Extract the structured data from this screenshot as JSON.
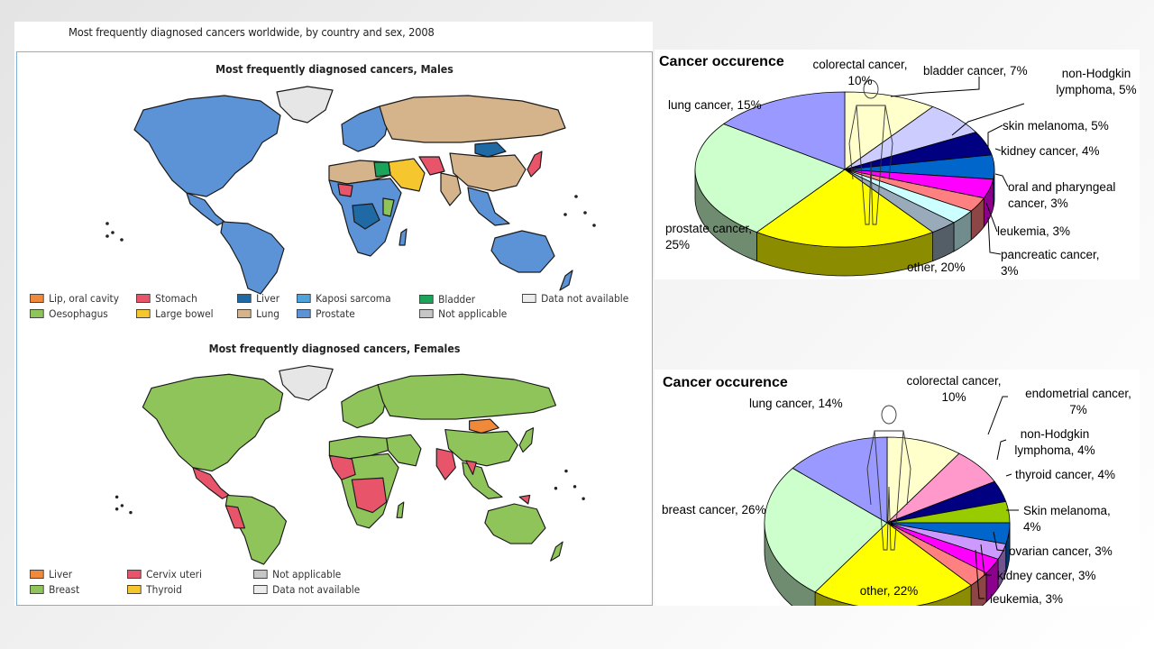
{
  "map_panel": {
    "figure_title": "Most frequently diagnosed cancers worldwide, by country and sex, 2008",
    "males": {
      "title": "Most frequently diagnosed cancers, Males",
      "legend": [
        {
          "label": "Lip, oral cavity",
          "color": "#f08a3a"
        },
        {
          "label": "Oesophagus",
          "color": "#8fc45a"
        },
        {
          "label": "Stomach",
          "color": "#e8556a"
        },
        {
          "label": "Large bowel",
          "color": "#f5c62e"
        },
        {
          "label": "Liver",
          "color": "#1f6aa5"
        },
        {
          "label": "Lung",
          "color": "#d5b48c"
        },
        {
          "label": "Kaposi sarcoma",
          "color": "#4ea3dc"
        },
        {
          "label": "Prostate",
          "color": "#5b93d6"
        },
        {
          "label": "Bladder",
          "color": "#1aa55a"
        },
        {
          "label": "Not applicable",
          "color": "#c6c6c6"
        },
        {
          "label": "Data not available",
          "color": "#ececec"
        }
      ]
    },
    "females": {
      "title": "Most frequently diagnosed cancers, Females",
      "legend": [
        {
          "label": "Liver",
          "color": "#f08a3a"
        },
        {
          "label": "Breast",
          "color": "#8fc45a"
        },
        {
          "label": "Cervix uteri",
          "color": "#e8556a"
        },
        {
          "label": "Thyroid",
          "color": "#f5c62e"
        },
        {
          "label": "Not applicable",
          "color": "#c6c6c6"
        },
        {
          "label": "Data not available",
          "color": "#ececec"
        }
      ]
    }
  },
  "chart_data": [
    {
      "type": "pie",
      "title": "Cancer occurence",
      "subject": "male",
      "slices": [
        {
          "label": "colorectal cancer, 10%",
          "name": "colorectal cancer",
          "value": 10,
          "color": "#ffffcc"
        },
        {
          "label": "bladder cancer, 7%",
          "name": "bladder cancer",
          "value": 7,
          "color": "#ccccff"
        },
        {
          "label": "non-Hodgkin lymphoma, 5%",
          "name": "non-Hodgkin lymphoma",
          "value": 5,
          "color": "#000080"
        },
        {
          "label": "skin melanoma, 5%",
          "name": "skin melanoma",
          "value": 5,
          "color": "#0066cc"
        },
        {
          "label": "kidney cancer, 4%",
          "name": "kidney cancer",
          "value": 4,
          "color": "#ff00ff"
        },
        {
          "label": "oral and pharyngeal cancer, 3%",
          "name": "oral and pharyngeal cancer",
          "value": 3,
          "color": "#ff8080"
        },
        {
          "label": "leukemia, 3%",
          "name": "leukemia",
          "value": 3,
          "color": "#ccffff"
        },
        {
          "label": "pancreatic cancer, 3%",
          "name": "pancreatic cancer",
          "value": 3,
          "color": "#99aabb"
        },
        {
          "label": "other, 20%",
          "name": "other",
          "value": 20,
          "color": "#ffff00"
        },
        {
          "label": "prostate cancer, 25%",
          "name": "prostate cancer",
          "value": 25,
          "color": "#ccffcc"
        },
        {
          "label": "lung cancer, 15%",
          "name": "lung cancer",
          "value": 15,
          "color": "#9999ff"
        }
      ]
    },
    {
      "type": "pie",
      "title": "Cancer occurence",
      "subject": "female",
      "slices": [
        {
          "label": "colorectal cancer, 10%",
          "name": "colorectal cancer",
          "value": 10,
          "color": "#ffffcc"
        },
        {
          "label": "endometrial cancer, 7%",
          "name": "endometrial cancer",
          "value": 7,
          "color": "#ff99cc"
        },
        {
          "label": "non-Hodgkin lymphoma, 4%",
          "name": "non-Hodgkin lymphoma",
          "value": 4,
          "color": "#000080"
        },
        {
          "label": "thyroid cancer, 4%",
          "name": "thyroid cancer",
          "value": 4,
          "color": "#99cc00"
        },
        {
          "label": "Skin melanoma, 4%",
          "name": "Skin melanoma",
          "value": 4,
          "color": "#0066cc"
        },
        {
          "label": "ovarian cancer, 3%",
          "name": "ovarian cancer",
          "value": 3,
          "color": "#cc99ff"
        },
        {
          "label": "kidney cancer, 3%",
          "name": "kidney cancer",
          "value": 3,
          "color": "#ff00ff"
        },
        {
          "label": "leukemia, 3%",
          "name": "leukemia",
          "value": 3,
          "color": "#ff8080"
        },
        {
          "label": "other, 22%",
          "name": "other",
          "value": 22,
          "color": "#ffff00"
        },
        {
          "label": "breast cancer, 26%",
          "name": "breast cancer",
          "value": 26,
          "color": "#ccffcc"
        },
        {
          "label": "lung cancer, 14%",
          "name": "lung cancer",
          "value": 14,
          "color": "#9999ff"
        }
      ]
    }
  ],
  "pie_labels": {
    "male": [
      [
        "colorectal cancer,",
        "10%"
      ],
      [
        "bladder cancer, 7%"
      ],
      [
        "non-Hodgkin",
        "lymphoma, 5%"
      ],
      [
        "skin melanoma, 5%"
      ],
      [
        "kidney cancer, 4%"
      ],
      [
        "oral and pharyngeal",
        "cancer, 3%"
      ],
      [
        "leukemia, 3%"
      ],
      [
        "pancreatic cancer,",
        "3%"
      ],
      [
        "other, 20%"
      ],
      [
        "prostate cancer,",
        "25%"
      ],
      [
        "lung cancer, 15%"
      ]
    ],
    "female": [
      [
        "colorectal cancer,",
        "10%"
      ],
      [
        "endometrial cancer,",
        "7%"
      ],
      [
        "non-Hodgkin",
        "lymphoma, 4%"
      ],
      [
        "thyroid cancer, 4%"
      ],
      [
        "Skin melanoma,",
        "4%"
      ],
      [
        "ovarian cancer, 3%"
      ],
      [
        "kidney cancer, 3%"
      ],
      [
        "leukemia, 3%"
      ],
      [
        "other, 22%"
      ],
      [
        "breast cancer, 26%"
      ],
      [
        "lung cancer, 14%"
      ]
    ]
  }
}
